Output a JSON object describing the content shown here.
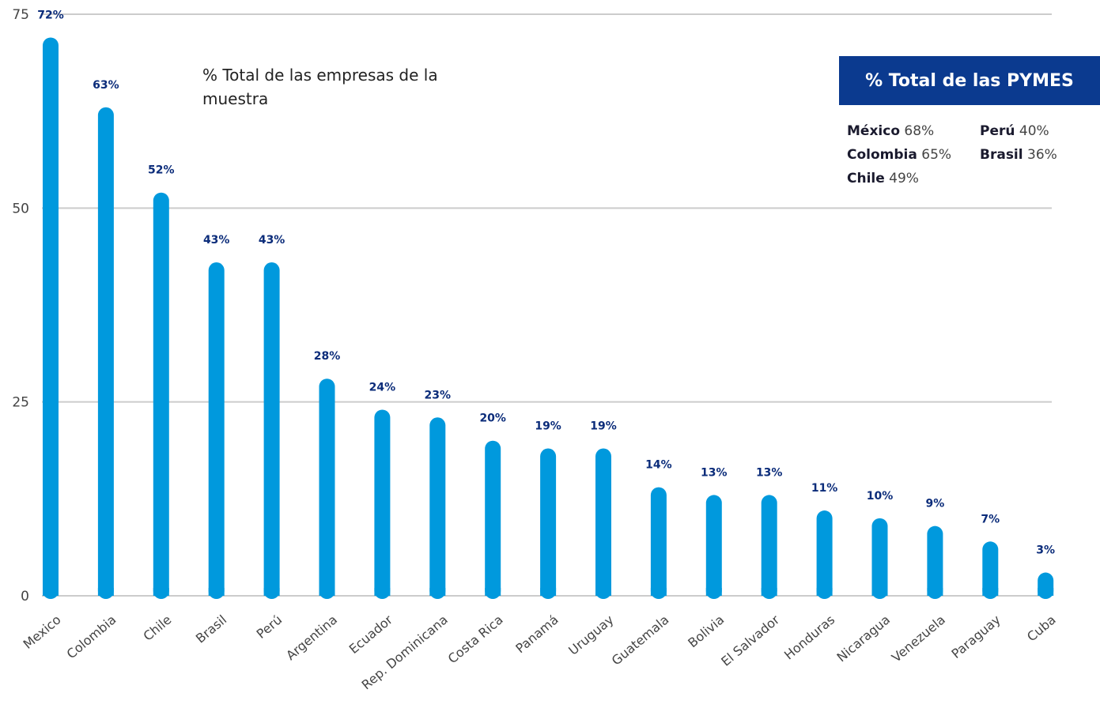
{
  "chart_data": {
    "type": "bar",
    "title": "",
    "subtitle": "% Total de las empresas de la muestra",
    "categories": [
      "Mexico",
      "Colombia",
      "Chile",
      "Brasil",
      "Perú",
      "Argentina",
      "Ecuador",
      "Rep. Dominicana",
      "Costa Rica",
      "Panamá",
      "Uruguay",
      "Guatemala",
      "Bolivia",
      "El Salvador",
      "Honduras",
      "Nicaragua",
      "Venezuela",
      "Paraguay",
      "Cuba"
    ],
    "values": [
      72,
      63,
      52,
      43,
      43,
      28,
      24,
      23,
      20,
      19,
      19,
      14,
      13,
      13,
      11,
      10,
      9,
      7,
      3
    ],
    "value_labels": [
      "72%",
      "63%",
      "52%",
      "43%",
      "43%",
      "28%",
      "24%",
      "23%",
      "20%",
      "19%",
      "19%",
      "14%",
      "13%",
      "13%",
      "11%",
      "10%",
      "9%",
      "7%",
      "3%"
    ],
    "ylim": [
      0,
      75
    ],
    "yticks": [
      0,
      25,
      50,
      75
    ],
    "grid": true,
    "bar_color": "#0099dd",
    "label_color": "#0b2c7a",
    "grid_color": "#cccccc"
  },
  "legend_box": {
    "title": "% Total de las PYMES",
    "background": "#0b3a8f",
    "items": [
      {
        "country": "México",
        "value": "68%"
      },
      {
        "country": "Perú",
        "value": "40%"
      },
      {
        "country": "Colombia",
        "value": "65%"
      },
      {
        "country": "Brasil",
        "value": "36%"
      },
      {
        "country": "Chile",
        "value": "49%"
      }
    ]
  }
}
